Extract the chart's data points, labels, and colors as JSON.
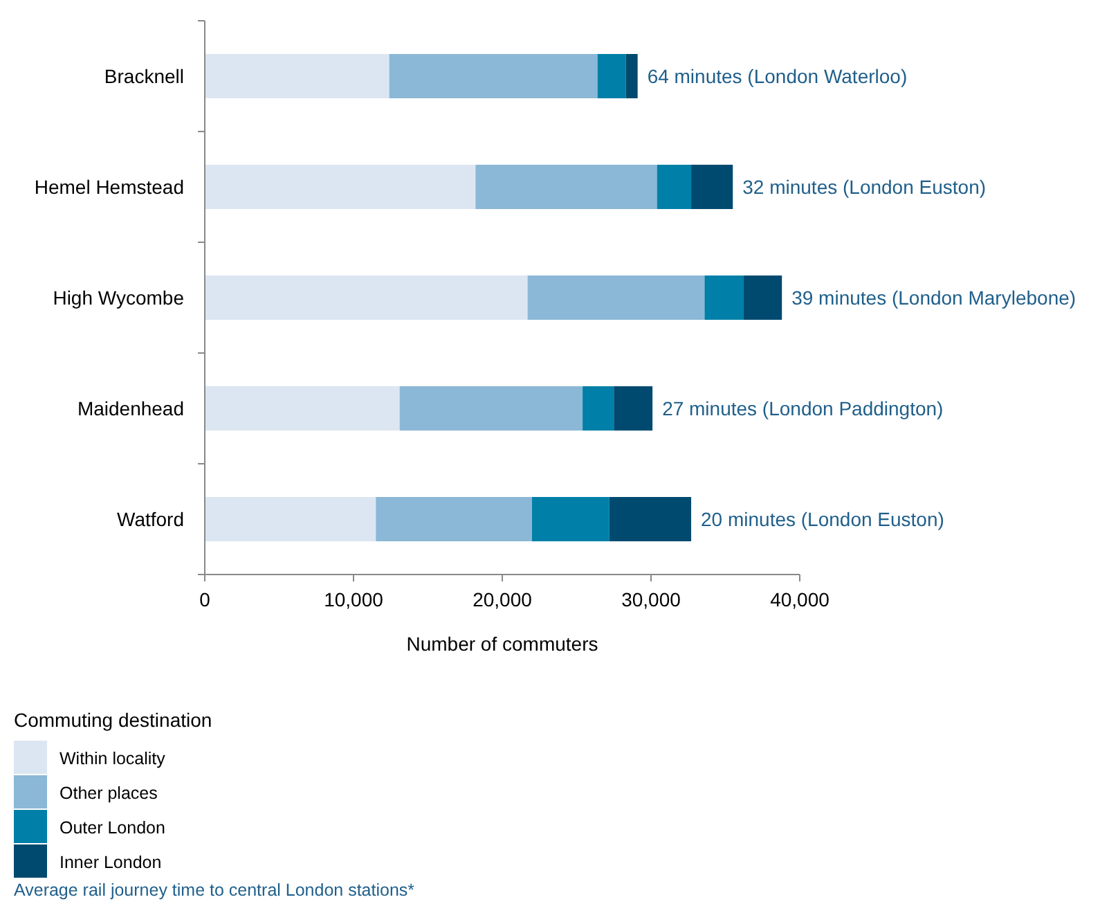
{
  "chart_data": {
    "type": "bar",
    "orientation": "horizontal",
    "stacked": true,
    "categories": [
      "Bracknell",
      "Hemel Hemstead",
      "High Wycombe",
      "Maidenhead",
      "Watford"
    ],
    "series": [
      {
        "name": "Within locality",
        "color": "#dce6f2",
        "values": [
          12400,
          18200,
          21700,
          13100,
          11500
        ]
      },
      {
        "name": "Other places",
        "color": "#8bb8d6",
        "values": [
          14000,
          12200,
          11900,
          12300,
          10500
        ]
      },
      {
        "name": "Outer London",
        "color": "#0080a8",
        "values": [
          1900,
          2300,
          2600,
          2100,
          5200
        ]
      },
      {
        "name": "Inner London",
        "color": "#004a70",
        "values": [
          800,
          2800,
          2600,
          2600,
          5500
        ]
      }
    ],
    "xlim": [
      0,
      40000
    ],
    "xticks": [
      0,
      {
        "value": 10000,
        "label": "10,000"
      },
      {
        "value": 20000,
        "label": "20,000"
      },
      {
        "value": 30000,
        "label": "30,000"
      },
      {
        "value": 40000,
        "label": "40,000"
      }
    ],
    "xlabel": "Number of commuters",
    "legend_title": "Commuting destination",
    "legend": "bottom left",
    "grid": false,
    "annotations": [
      {
        "text": "64 minutes (London Waterloo)",
        "x": 29100,
        "y": "Bracknell"
      },
      {
        "text": "32 minutes (London Euston)",
        "x": 35500,
        "y": "Hemel Hemstead"
      },
      {
        "text": "39 minutes (London Marylebone)",
        "x": 38800,
        "y": "High Wycombe"
      },
      {
        "text": "27 minutes (London Paddington)",
        "x": 30100,
        "y": "Maidenhead"
      },
      {
        "text": "20 minutes (London Euston)",
        "x": 32700,
        "y": "Watford"
      },
      "Average rail journey time to central London stations*"
    ]
  }
}
